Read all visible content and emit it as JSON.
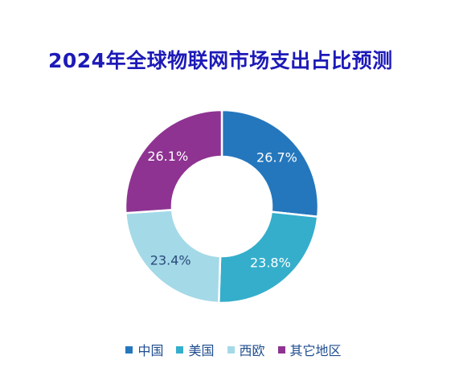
{
  "chart_data": {
    "type": "pie",
    "title": "2024年全球物联网市场支出占比预测",
    "categories": [
      "中国",
      "美国",
      "西欧",
      "其它地区"
    ],
    "values": [
      26.7,
      23.8,
      23.4,
      26.1
    ],
    "labels": [
      "26.7%",
      "23.8%",
      "23.4%",
      "26.1%"
    ],
    "colors": [
      "#2477bd",
      "#34aecb",
      "#a4d9e8",
      "#8e3392"
    ],
    "label_colors": [
      "#ffffff",
      "#ffffff",
      "#2a4a7a",
      "#ffffff"
    ],
    "donut": true,
    "legend_position": "bottom"
  }
}
